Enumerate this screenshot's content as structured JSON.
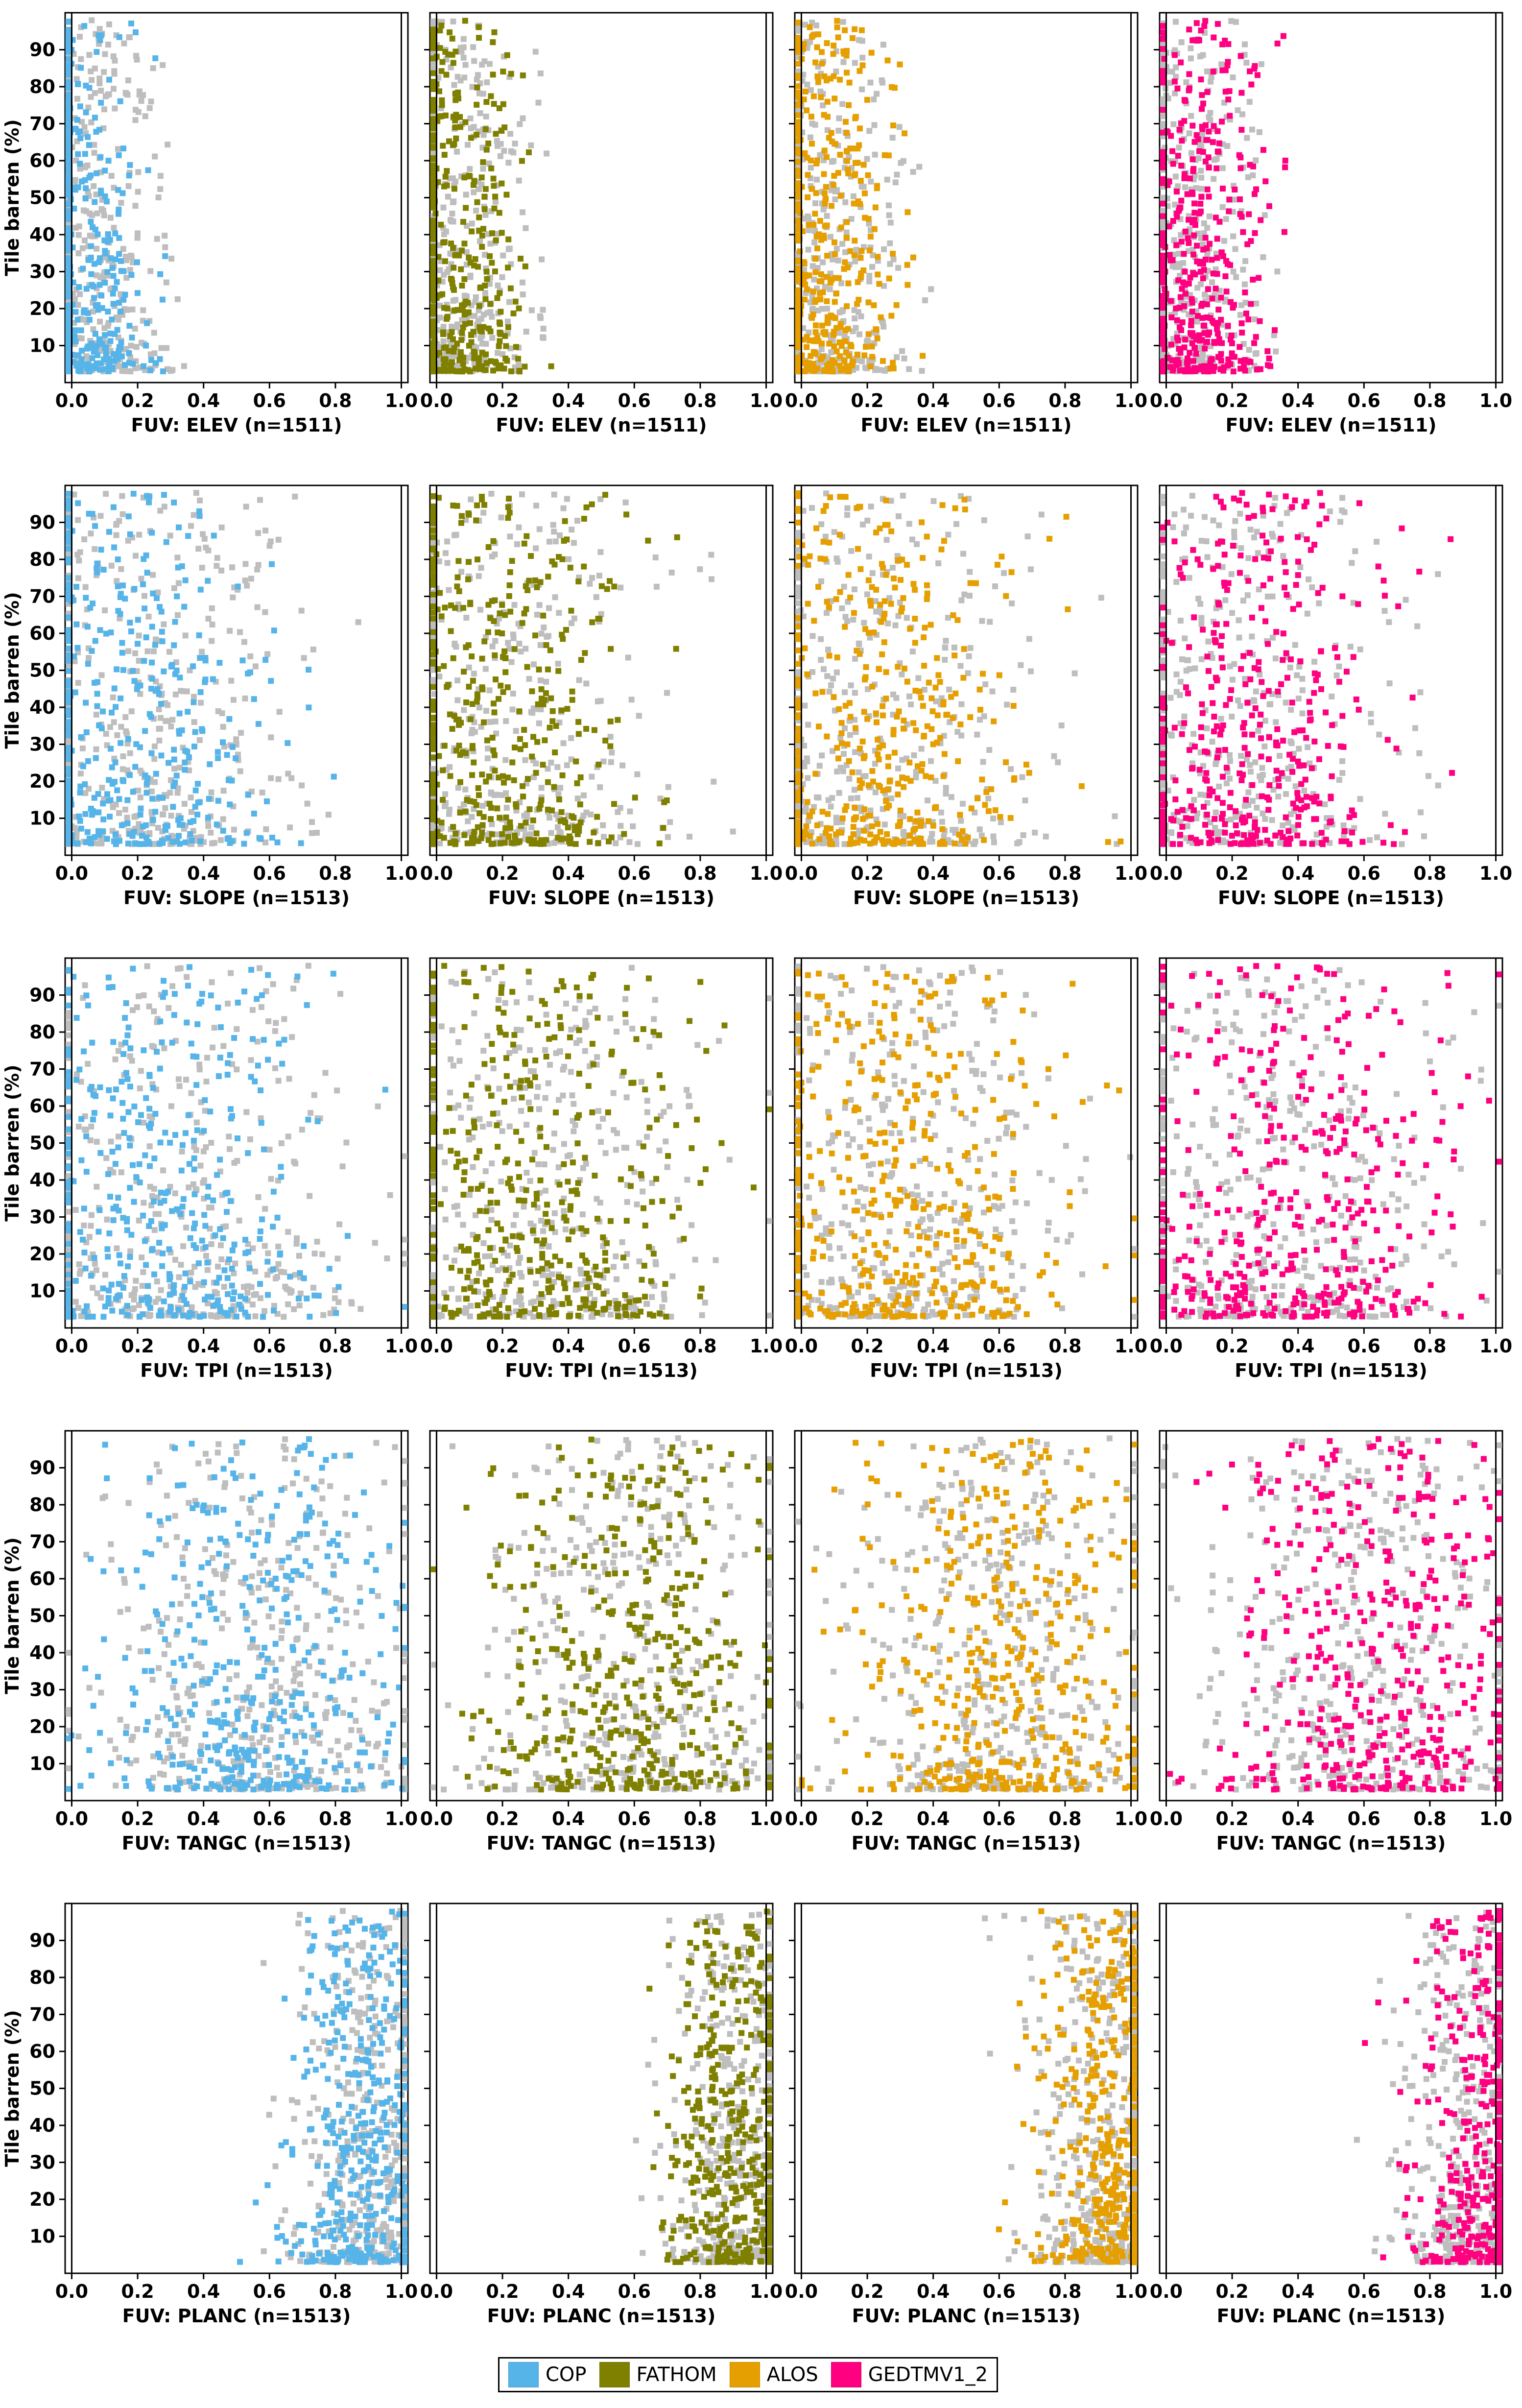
{
  "legend": [
    {
      "name": "COP",
      "color": "#56B4E9"
    },
    {
      "name": "FATHOM",
      "color": "#808000"
    },
    {
      "name": "ALOS",
      "color": "#E69F00"
    },
    {
      "name": "GEDTMV1_2",
      "color": "#FF0080"
    }
  ],
  "background_color": "#BEBEBE",
  "chart_data": {
    "type": "scatter",
    "layout": "5 rows x 4 columns of small-multiple scatter panels",
    "ylabel": "Tile barren (%)",
    "ylim": [
      0,
      100
    ],
    "yticks": [
      10,
      20,
      30,
      40,
      50,
      60,
      70,
      80,
      90
    ],
    "xlim": [
      -0.02,
      1.02
    ],
    "xticks": [
      "0.0",
      "0.2",
      "0.4",
      "0.6",
      "0.8",
      "1.0"
    ],
    "xtick_values": [
      0,
      0.2,
      0.4,
      0.6,
      0.8,
      1.0
    ],
    "series": [
      "COP",
      "FATHOM",
      "ALOS",
      "GEDTMV1_2"
    ],
    "rows": [
      {
        "parameter": "ELEV",
        "xlabel": "FUV: ELEV  (n=1511)",
        "n": 1511,
        "approx_x_center": 0.05,
        "approx_x_spread": 0.12
      },
      {
        "parameter": "SLOPE",
        "xlabel": "FUV: SLOPE  (n=1513)",
        "n": 1513,
        "approx_x_center": 0.2,
        "approx_x_spread": 0.25
      },
      {
        "parameter": "TPI",
        "xlabel": "FUV: TPI  (n=1513)",
        "n": 1513,
        "approx_x_center": 0.3,
        "approx_x_spread": 0.28
      },
      {
        "parameter": "TANGC",
        "xlabel": "FUV: TANGC  (n=1513)",
        "n": 1513,
        "approx_x_center": 0.6,
        "approx_x_spread": 0.25
      },
      {
        "parameter": "PLANC",
        "xlabel": "FUV: PLANC  (n=1513)",
        "n": 1513,
        "approx_x_center": 0.92,
        "approx_x_spread": 0.12
      }
    ]
  }
}
